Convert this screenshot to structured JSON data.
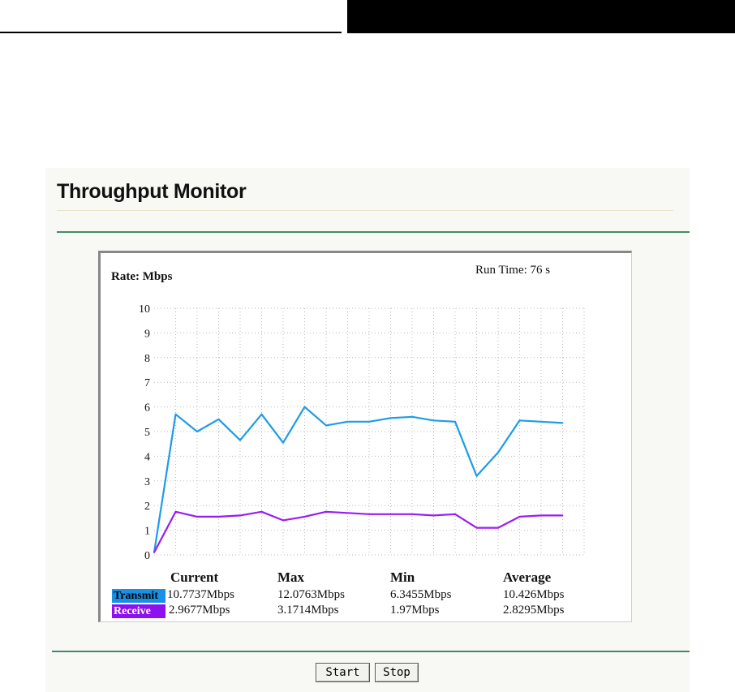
{
  "page": {
    "title": "Throughput Monitor"
  },
  "monitor": {
    "rate_label": "Rate: Mbps",
    "run_time_label": "Run Time:",
    "run_time_value": "76 s"
  },
  "colors": {
    "transmit": "#1e9be8",
    "receive": "#9a1cf2",
    "transmit_swatch": "#1790e5",
    "receive_swatch": "#8f10ee",
    "green_rule": "#3f8d62"
  },
  "chart_data": {
    "type": "line",
    "ylabel": "Rate: Mbps",
    "ylim": [
      0,
      10
    ],
    "yticks": [
      "0",
      "1",
      "2",
      "3",
      "4",
      "5",
      "6",
      "7",
      "8",
      "9",
      "10"
    ],
    "grid": true,
    "series": [
      {
        "name": "Transmit",
        "values": [
          0.1,
          5.7,
          5.0,
          5.5,
          4.65,
          5.7,
          4.55,
          6.0,
          5.25,
          5.4,
          5.4,
          5.55,
          5.6,
          5.45,
          5.4,
          3.2,
          4.15,
          5.45,
          5.4,
          5.35
        ]
      },
      {
        "name": "Receive",
        "values": [
          0.1,
          1.75,
          1.55,
          1.55,
          1.6,
          1.75,
          1.4,
          1.55,
          1.75,
          1.7,
          1.65,
          1.65,
          1.65,
          1.6,
          1.65,
          1.1,
          1.1,
          1.55,
          1.6,
          1.6
        ]
      }
    ]
  },
  "stats": {
    "headers": [
      "Current",
      "Max",
      "Min",
      "Average"
    ],
    "transmit": {
      "label": "Transmit",
      "current": "10.7737Mbps",
      "max": "12.0763Mbps",
      "min": "6.3455Mbps",
      "average": "10.426Mbps"
    },
    "receive": {
      "label": "Receive",
      "current": "2.9677Mbps",
      "max": "3.1714Mbps",
      "min": "1.97Mbps",
      "average": "2.8295Mbps"
    }
  },
  "buttons": {
    "start": "Start",
    "stop": "Stop"
  }
}
